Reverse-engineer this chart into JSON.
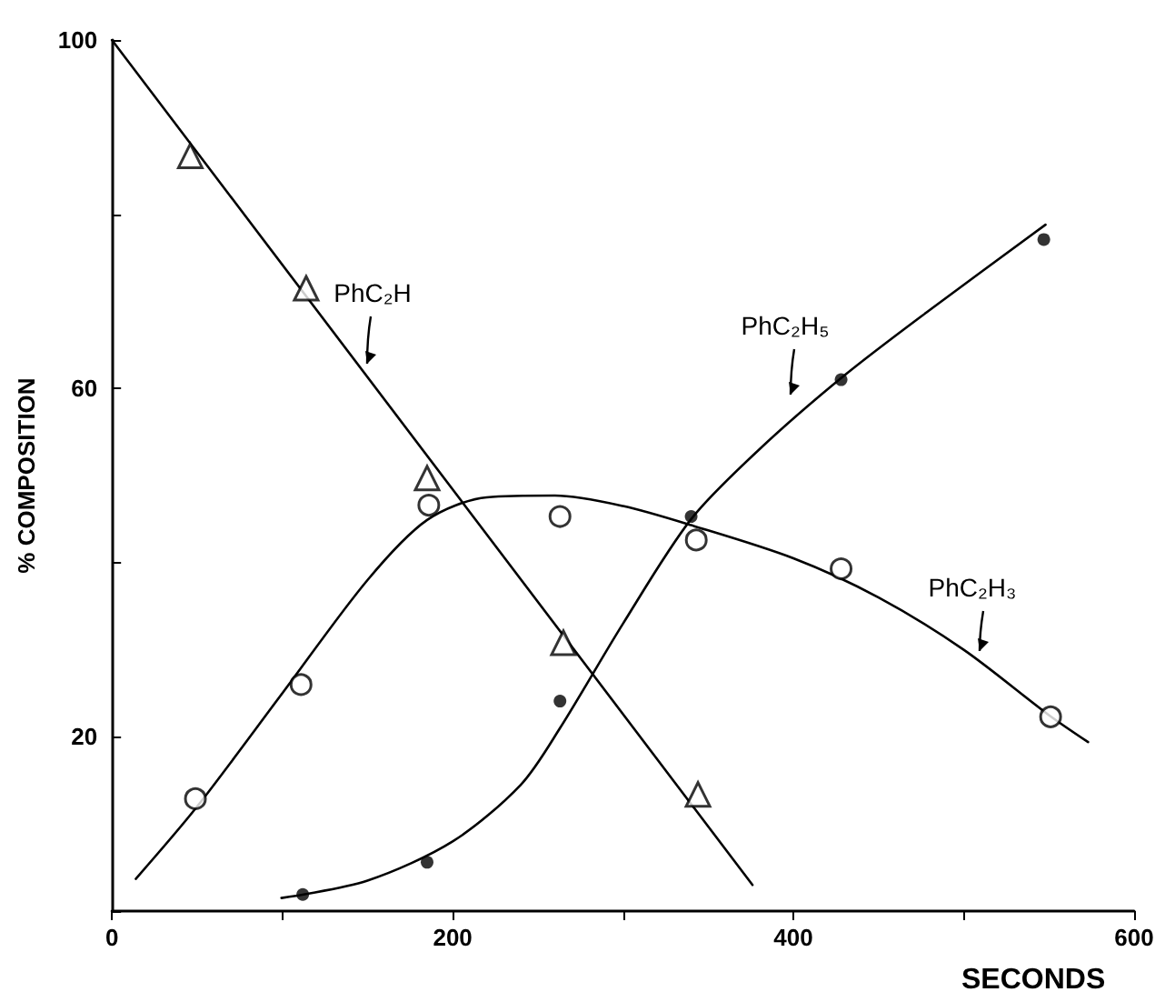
{
  "chart_data": {
    "type": "scatter",
    "xlabel": "SECONDS",
    "ylabel": "% COMPOSITION",
    "xlim": [
      0,
      600
    ],
    "ylim": [
      0,
      100
    ],
    "xticks": [
      0,
      {
        "value": 100,
        "label": null
      },
      200,
      {
        "value": 300,
        "label": null
      },
      400,
      {
        "value": 500,
        "label": null
      },
      600
    ],
    "yticks": [
      {
        "value": 0,
        "label": null
      },
      20,
      {
        "value": 40,
        "label": null
      },
      60,
      {
        "value": 80,
        "label": null
      },
      100
    ],
    "grid": false,
    "series": [
      {
        "marker": "triangle",
        "color": "#ffffff",
        "x": [
          46,
          114,
          185,
          265,
          344
        ],
        "values": [
          86.7,
          71.5,
          49.7,
          30.8,
          13.4
        ]
      },
      {
        "marker": "circle",
        "color": "#ffffff",
        "x": [
          49,
          111,
          186,
          263,
          343,
          428,
          551
        ],
        "values": [
          12.9,
          26,
          46.6,
          45.3,
          42.6,
          39.3,
          22.3
        ]
      },
      {
        "marker": "circle",
        "color": "#000000",
        "x": [
          112,
          185,
          263,
          340,
          428,
          547
        ],
        "values": [
          1.9,
          5.6,
          24.1,
          45.3,
          61,
          77.1
        ]
      },
      {
        "type": "line",
        "name": "PhC₂H",
        "marker": "none",
        "color": "#000000",
        "x": [
          0,
          376
        ],
        "values": [
          100,
          3
        ]
      },
      {
        "type": "line",
        "name": "PhC₂H₃",
        "marker": "none",
        "color": "#000000",
        "x": [
          14,
          50,
          100,
          150,
          185,
          220,
          260,
          300,
          340,
          400,
          450,
          500,
          550,
          573
        ],
        "values": [
          3.7,
          12,
          25,
          38,
          44.9,
          47.5,
          47.7,
          46.5,
          44.3,
          40.5,
          36,
          30,
          22.5,
          19.4
        ]
      },
      {
        "type": "line",
        "name": "PhC₂H₅",
        "marker": "none",
        "color": "#000000",
        "x": [
          99.5,
          150,
          200,
          240,
          263,
          300,
          340,
          380,
          430,
          480,
          548
        ],
        "values": [
          1.5,
          3.5,
          8,
          14.5,
          21,
          33,
          45,
          53,
          61.5,
          69,
          78.8
        ]
      }
    ]
  }
}
